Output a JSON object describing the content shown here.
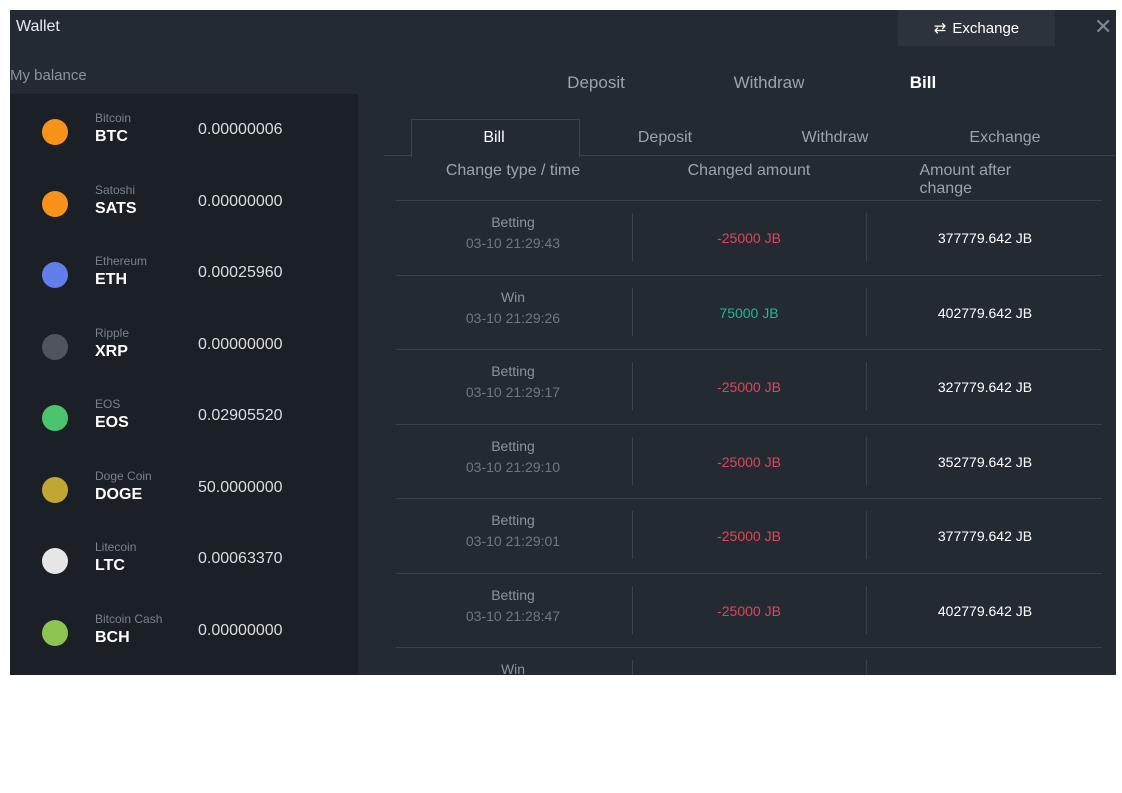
{
  "header": {
    "title": "Wallet",
    "exchange_button": "Exchange"
  },
  "sidebar": {
    "title": "My balance",
    "coins": [
      {
        "name": "Bitcoin",
        "symbol": "BTC",
        "balance": "0.00000006"
      },
      {
        "name": "Satoshi",
        "symbol": "SATS",
        "balance": "0.00000000"
      },
      {
        "name": "Ethereum",
        "symbol": "ETH",
        "balance": "0.00025960"
      },
      {
        "name": "Ripple",
        "symbol": "XRP",
        "balance": "0.00000000"
      },
      {
        "name": "EOS",
        "symbol": "EOS",
        "balance": "0.02905520"
      },
      {
        "name": "Doge Coin",
        "symbol": "DOGE",
        "balance": "50.0000000"
      },
      {
        "name": "Litecoin",
        "symbol": "LTC",
        "balance": "0.00063370"
      },
      {
        "name": "Bitcoin Cash",
        "symbol": "BCH",
        "balance": "0.00000000"
      }
    ]
  },
  "tabs": [
    "Deposit",
    "Withdraw",
    "Bill"
  ],
  "subtabs": [
    "Bill",
    "Deposit",
    "Withdraw",
    "Exchange"
  ],
  "table": {
    "headers": [
      "Change type / time",
      "Changed amount",
      "Amount after change"
    ],
    "rows": [
      [
        "Betting",
        "03-10 21:29:43",
        "-25000 JB",
        "377779.642 JB"
      ],
      [
        "Win",
        "03-10 21:29:26",
        "75000 JB",
        "402779.642 JB"
      ],
      [
        "Betting",
        "03-10 21:29:17",
        "-25000 JB",
        "327779.642 JB"
      ],
      [
        "Betting",
        "03-10 21:29:10",
        "-25000 JB",
        "352779.642 JB"
      ],
      [
        "Betting",
        "03-10 21:29:01",
        "-25000 JB",
        "377779.642 JB"
      ],
      [
        "Betting",
        "03-10 21:28:47",
        "-25000 JB",
        "402779.642 JB"
      ],
      [
        "Win"
      ]
    ]
  }
}
